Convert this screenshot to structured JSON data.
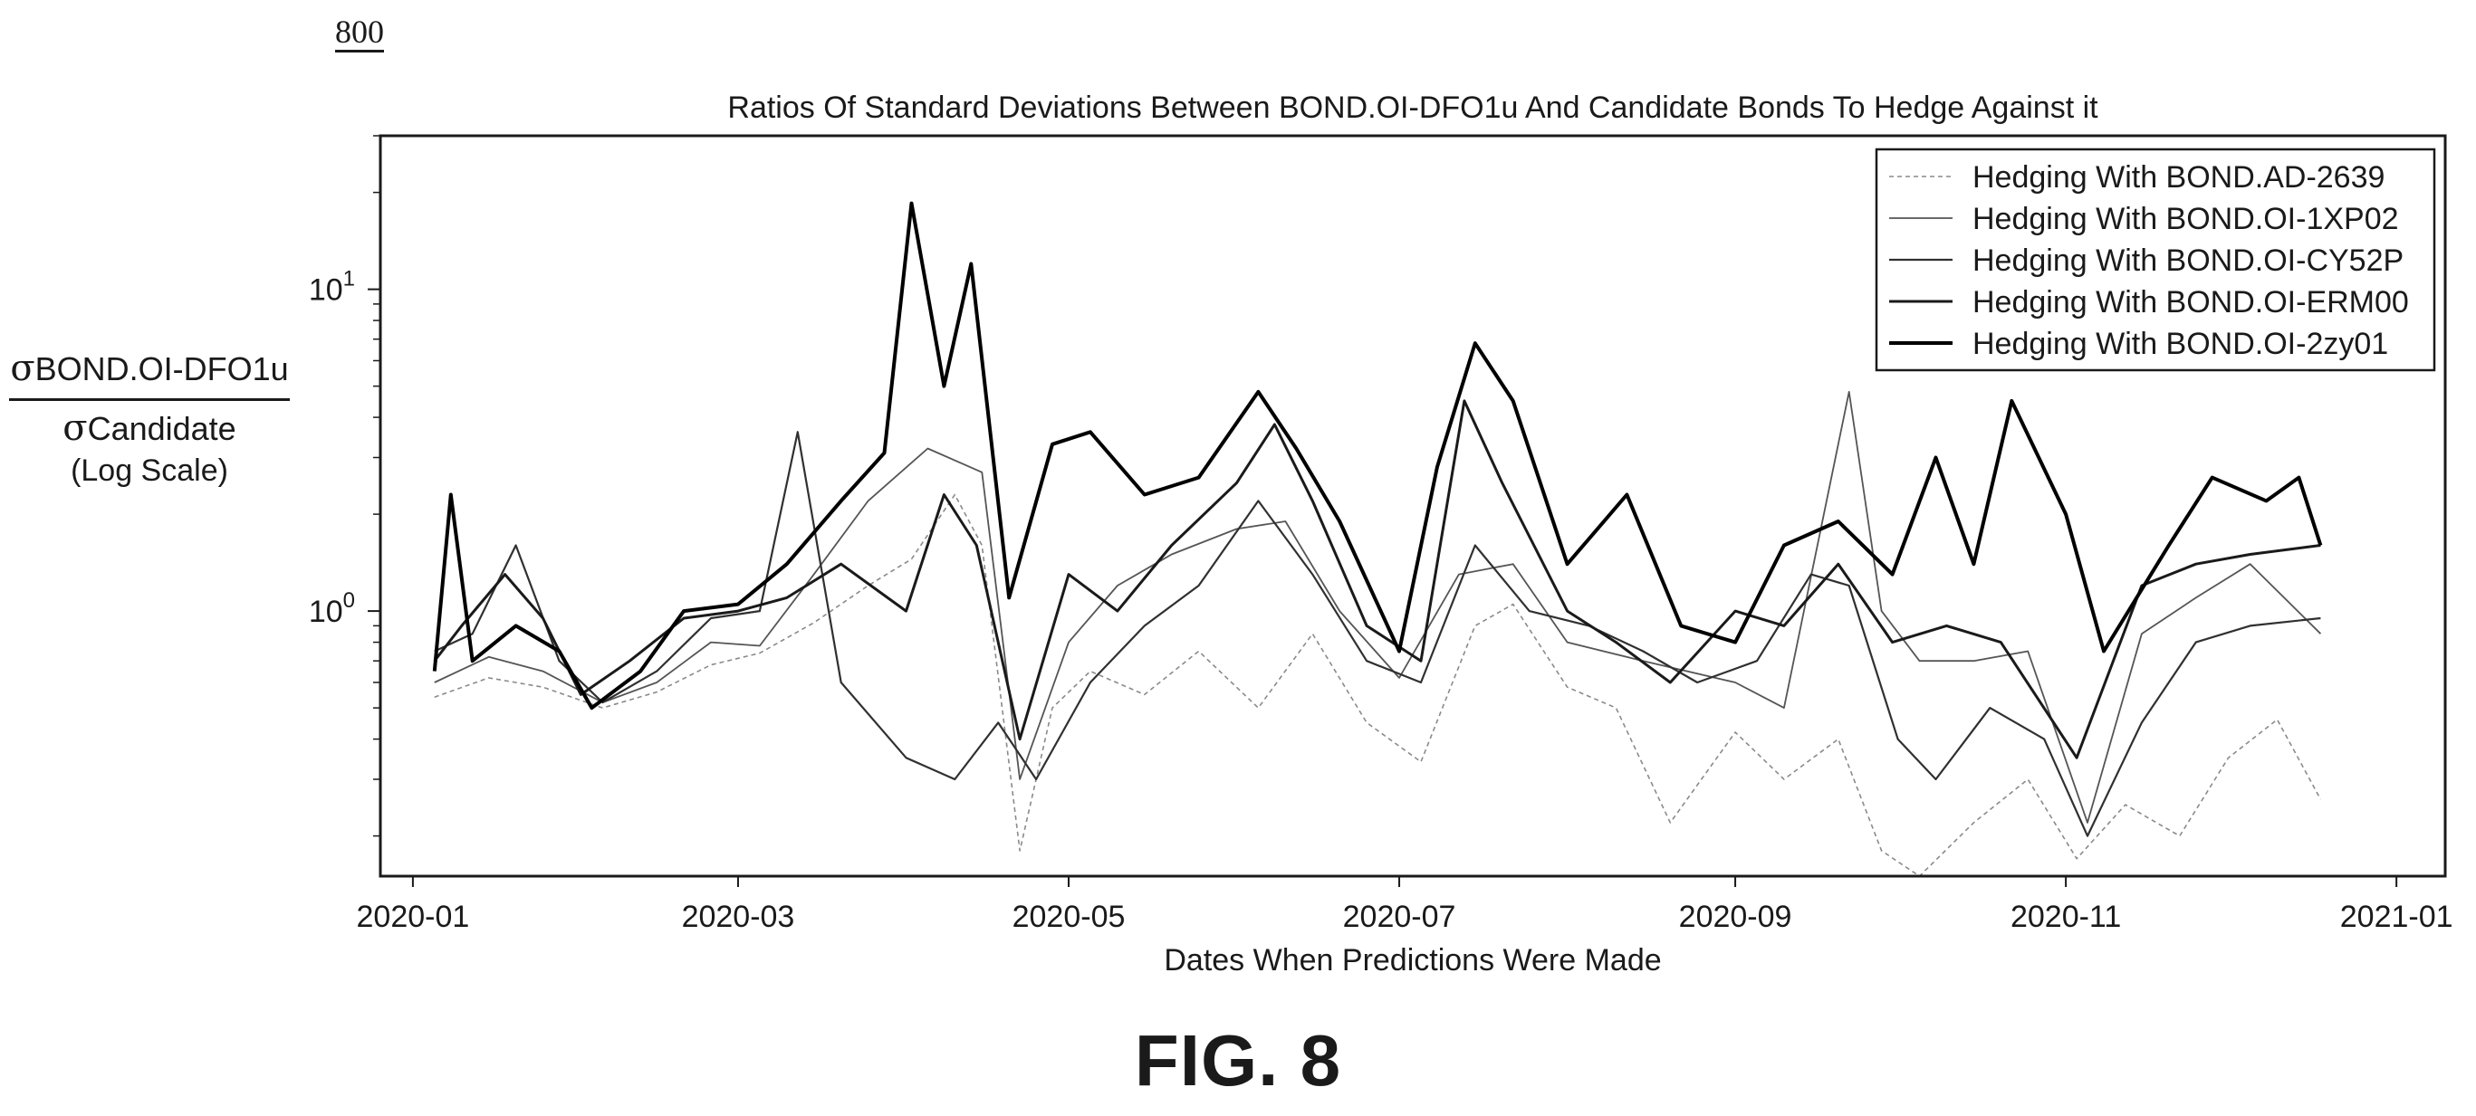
{
  "figure_ref": "800",
  "figure_caption": "FIG. 8",
  "chart_data": {
    "type": "line",
    "title": "Ratios Of Standard Deviations Between BOND.OI-DFO1u And Candidate Bonds To Hedge Against it",
    "xlabel": "Dates When Predictions Were Made",
    "ylabel": {
      "numerator_symbol": "σ",
      "numerator_subscript": "BOND.OI-DFO1u",
      "denominator_symbol": "σ",
      "denominator_subscript": "Candidate",
      "scale_note": "(Log Scale)"
    },
    "yscale": "log",
    "ylim": [
      0.15,
      30
    ],
    "xlim": [
      "2019-12-26",
      "2021-01-10"
    ],
    "x_ticks": [
      "2020-01",
      "2020-03",
      "2020-05",
      "2020-07",
      "2020-09",
      "2020-11",
      "2021-01"
    ],
    "y_ticks": [
      {
        "label_base": "10",
        "label_exp": "0",
        "value": 1
      },
      {
        "label_base": "10",
        "label_exp": "1",
        "value": 10
      }
    ],
    "grid": false,
    "legend_position": "top-right",
    "series": [
      {
        "name": "Hedging With BOND.AD-2639",
        "color": "#8a8a8a",
        "width": 1.6,
        "dash": "5,4",
        "points": [
          [
            "2020-01-05",
            0.54
          ],
          [
            "2020-01-15",
            0.62
          ],
          [
            "2020-01-25",
            0.58
          ],
          [
            "2020-02-05",
            0.5
          ],
          [
            "2020-02-15",
            0.56
          ],
          [
            "2020-02-25",
            0.68
          ],
          [
            "2020-03-05",
            0.74
          ],
          [
            "2020-03-15",
            0.92
          ],
          [
            "2020-03-25",
            1.2
          ],
          [
            "2020-04-02",
            1.45
          ],
          [
            "2020-04-10",
            2.3
          ],
          [
            "2020-04-15",
            1.6
          ],
          [
            "2020-04-22",
            0.18
          ],
          [
            "2020-04-28",
            0.5
          ],
          [
            "2020-05-05",
            0.65
          ],
          [
            "2020-05-15",
            0.55
          ],
          [
            "2020-05-25",
            0.75
          ],
          [
            "2020-06-05",
            0.5
          ],
          [
            "2020-06-15",
            0.85
          ],
          [
            "2020-06-25",
            0.45
          ],
          [
            "2020-07-05",
            0.34
          ],
          [
            "2020-07-15",
            0.9
          ],
          [
            "2020-07-22",
            1.05
          ],
          [
            "2020-08-01",
            0.58
          ],
          [
            "2020-08-10",
            0.5
          ],
          [
            "2020-08-20",
            0.22
          ],
          [
            "2020-09-01",
            0.42
          ],
          [
            "2020-09-10",
            0.3
          ],
          [
            "2020-09-20",
            0.4
          ],
          [
            "2020-09-28",
            0.18
          ],
          [
            "2020-10-05",
            0.15
          ],
          [
            "2020-10-15",
            0.22
          ],
          [
            "2020-10-25",
            0.3
          ],
          [
            "2020-11-03",
            0.17
          ],
          [
            "2020-11-12",
            0.25
          ],
          [
            "2020-11-22",
            0.2
          ],
          [
            "2020-12-01",
            0.35
          ],
          [
            "2020-12-10",
            0.46
          ],
          [
            "2020-12-18",
            0.26
          ]
        ]
      },
      {
        "name": "Hedging With BOND.OI-1XP02",
        "color": "#555555",
        "width": 1.8,
        "dash": "",
        "points": [
          [
            "2020-01-05",
            0.6
          ],
          [
            "2020-01-15",
            0.72
          ],
          [
            "2020-01-25",
            0.65
          ],
          [
            "2020-02-05",
            0.52
          ],
          [
            "2020-02-15",
            0.6
          ],
          [
            "2020-02-25",
            0.8
          ],
          [
            "2020-03-05",
            0.78
          ],
          [
            "2020-03-15",
            1.3
          ],
          [
            "2020-03-25",
            2.2
          ],
          [
            "2020-04-05",
            3.2
          ],
          [
            "2020-04-15",
            2.7
          ],
          [
            "2020-04-22",
            0.3
          ],
          [
            "2020-05-01",
            0.8
          ],
          [
            "2020-05-10",
            1.2
          ],
          [
            "2020-05-20",
            1.5
          ],
          [
            "2020-06-01",
            1.8
          ],
          [
            "2020-06-10",
            1.9
          ],
          [
            "2020-06-20",
            1.0
          ],
          [
            "2020-07-01",
            0.62
          ],
          [
            "2020-07-12",
            1.3
          ],
          [
            "2020-07-22",
            1.4
          ],
          [
            "2020-08-01",
            0.8
          ],
          [
            "2020-08-15",
            0.7
          ],
          [
            "2020-09-01",
            0.6
          ],
          [
            "2020-09-10",
            0.5
          ],
          [
            "2020-09-22",
            4.8
          ],
          [
            "2020-09-28",
            1.0
          ],
          [
            "2020-10-05",
            0.7
          ],
          [
            "2020-10-15",
            0.7
          ],
          [
            "2020-10-25",
            0.75
          ],
          [
            "2020-11-05",
            0.22
          ],
          [
            "2020-11-15",
            0.85
          ],
          [
            "2020-11-25",
            1.1
          ],
          [
            "2020-12-05",
            1.4
          ],
          [
            "2020-12-18",
            0.85
          ]
        ]
      },
      {
        "name": "Hedging With BOND.OI-CY52P",
        "color": "#303030",
        "width": 2.2,
        "dash": "",
        "points": [
          [
            "2020-01-05",
            0.75
          ],
          [
            "2020-01-12",
            0.85
          ],
          [
            "2020-01-20",
            1.6
          ],
          [
            "2020-01-28",
            0.7
          ],
          [
            "2020-02-05",
            0.52
          ],
          [
            "2020-02-15",
            0.65
          ],
          [
            "2020-02-25",
            0.95
          ],
          [
            "2020-03-05",
            1.0
          ],
          [
            "2020-03-12",
            3.6
          ],
          [
            "2020-03-20",
            0.6
          ],
          [
            "2020-04-01",
            0.35
          ],
          [
            "2020-04-10",
            0.3
          ],
          [
            "2020-04-18",
            0.45
          ],
          [
            "2020-04-25",
            0.3
          ],
          [
            "2020-05-05",
            0.6
          ],
          [
            "2020-05-15",
            0.9
          ],
          [
            "2020-05-25",
            1.2
          ],
          [
            "2020-06-05",
            2.2
          ],
          [
            "2020-06-15",
            1.3
          ],
          [
            "2020-06-25",
            0.7
          ],
          [
            "2020-07-05",
            0.6
          ],
          [
            "2020-07-15",
            1.6
          ],
          [
            "2020-07-25",
            1.0
          ],
          [
            "2020-08-05",
            0.9
          ],
          [
            "2020-08-15",
            0.75
          ],
          [
            "2020-08-25",
            0.6
          ],
          [
            "2020-09-05",
            0.7
          ],
          [
            "2020-09-15",
            1.3
          ],
          [
            "2020-09-22",
            1.2
          ],
          [
            "2020-10-01",
            0.4
          ],
          [
            "2020-10-08",
            0.3
          ],
          [
            "2020-10-18",
            0.5
          ],
          [
            "2020-10-28",
            0.4
          ],
          [
            "2020-11-05",
            0.2
          ],
          [
            "2020-11-15",
            0.45
          ],
          [
            "2020-11-25",
            0.8
          ],
          [
            "2020-12-05",
            0.9
          ],
          [
            "2020-12-18",
            0.95
          ]
        ]
      },
      {
        "name": "Hedging With BOND.OI-ERM00",
        "color": "#1a1a1a",
        "width": 3.0,
        "dash": "",
        "points": [
          [
            "2020-01-05",
            0.7
          ],
          [
            "2020-01-10",
            0.9
          ],
          [
            "2020-01-18",
            1.3
          ],
          [
            "2020-01-25",
            0.95
          ],
          [
            "2020-02-01",
            0.55
          ],
          [
            "2020-02-10",
            0.7
          ],
          [
            "2020-02-20",
            0.95
          ],
          [
            "2020-03-01",
            1.0
          ],
          [
            "2020-03-10",
            1.1
          ],
          [
            "2020-03-20",
            1.4
          ],
          [
            "2020-04-01",
            1.0
          ],
          [
            "2020-04-08",
            2.3
          ],
          [
            "2020-04-14",
            1.6
          ],
          [
            "2020-04-22",
            0.4
          ],
          [
            "2020-05-01",
            1.3
          ],
          [
            "2020-05-10",
            1.0
          ],
          [
            "2020-05-20",
            1.6
          ],
          [
            "2020-06-01",
            2.5
          ],
          [
            "2020-06-08",
            3.8
          ],
          [
            "2020-06-15",
            2.2
          ],
          [
            "2020-06-25",
            0.9
          ],
          [
            "2020-07-05",
            0.7
          ],
          [
            "2020-07-13",
            4.5
          ],
          [
            "2020-07-20",
            2.5
          ],
          [
            "2020-08-01",
            1.0
          ],
          [
            "2020-08-10",
            0.8
          ],
          [
            "2020-08-20",
            0.6
          ],
          [
            "2020-09-01",
            1.0
          ],
          [
            "2020-09-10",
            0.9
          ],
          [
            "2020-09-20",
            1.4
          ],
          [
            "2020-09-30",
            0.8
          ],
          [
            "2020-10-10",
            0.9
          ],
          [
            "2020-10-20",
            0.8
          ],
          [
            "2020-11-03",
            0.35
          ],
          [
            "2020-11-15",
            1.2
          ],
          [
            "2020-11-25",
            1.4
          ],
          [
            "2020-12-05",
            1.5
          ],
          [
            "2020-12-18",
            1.6
          ]
        ]
      },
      {
        "name": "Hedging With BOND.OI-2zy01",
        "color": "#000000",
        "width": 4.0,
        "dash": "",
        "points": [
          [
            "2020-01-05",
            0.65
          ],
          [
            "2020-01-08",
            2.3
          ],
          [
            "2020-01-12",
            0.7
          ],
          [
            "2020-01-20",
            0.9
          ],
          [
            "2020-01-28",
            0.75
          ],
          [
            "2020-02-03",
            0.5
          ],
          [
            "2020-02-12",
            0.65
          ],
          [
            "2020-02-20",
            1.0
          ],
          [
            "2020-03-01",
            1.05
          ],
          [
            "2020-03-10",
            1.4
          ],
          [
            "2020-03-20",
            2.2
          ],
          [
            "2020-03-28",
            3.1
          ],
          [
            "2020-04-02",
            18.5
          ],
          [
            "2020-04-08",
            5.0
          ],
          [
            "2020-04-13",
            12.0
          ],
          [
            "2020-04-20",
            1.1
          ],
          [
            "2020-04-28",
            3.3
          ],
          [
            "2020-05-05",
            3.6
          ],
          [
            "2020-05-15",
            2.3
          ],
          [
            "2020-05-25",
            2.6
          ],
          [
            "2020-06-05",
            4.8
          ],
          [
            "2020-06-12",
            3.2
          ],
          [
            "2020-06-20",
            1.9
          ],
          [
            "2020-07-01",
            0.75
          ],
          [
            "2020-07-08",
            2.8
          ],
          [
            "2020-07-15",
            6.8
          ],
          [
            "2020-07-22",
            4.5
          ],
          [
            "2020-08-01",
            1.4
          ],
          [
            "2020-08-12",
            2.3
          ],
          [
            "2020-08-22",
            0.9
          ],
          [
            "2020-09-01",
            0.8
          ],
          [
            "2020-09-10",
            1.6
          ],
          [
            "2020-09-20",
            1.9
          ],
          [
            "2020-09-30",
            1.3
          ],
          [
            "2020-10-08",
            3.0
          ],
          [
            "2020-10-15",
            1.4
          ],
          [
            "2020-10-22",
            4.5
          ],
          [
            "2020-11-01",
            2.0
          ],
          [
            "2020-11-08",
            0.75
          ],
          [
            "2020-11-20",
            1.6
          ],
          [
            "2020-11-28",
            2.6
          ],
          [
            "2020-12-08",
            2.2
          ],
          [
            "2020-12-14",
            2.6
          ],
          [
            "2020-12-18",
            1.6
          ]
        ]
      }
    ]
  }
}
